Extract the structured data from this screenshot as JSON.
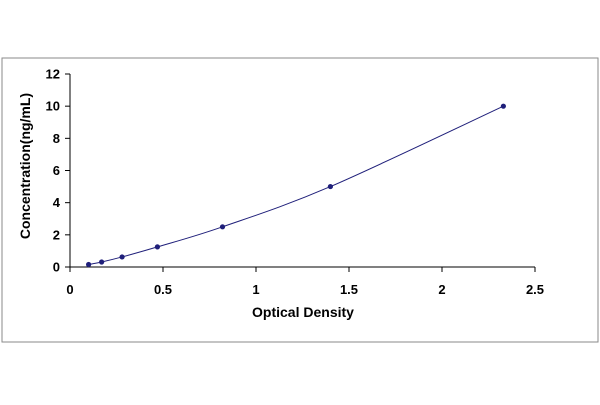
{
  "chart_data": {
    "type": "scatter",
    "title": "",
    "xlabel": "Optical Density",
    "ylabel": "Concentration(ng/mL)",
    "xlim": [
      0,
      2.5
    ],
    "ylim": [
      0,
      12
    ],
    "x_ticks": [
      0,
      0.5,
      1,
      1.5,
      2,
      2.5
    ],
    "x_tick_labels": [
      "0",
      "0.5",
      "1",
      "1.5",
      "2",
      "2.5"
    ],
    "y_ticks": [
      0,
      2,
      4,
      6,
      8,
      10,
      12
    ],
    "y_tick_labels": [
      "0",
      "2",
      "4",
      "6",
      "8",
      "10",
      "12"
    ],
    "grid": false,
    "legend": "none",
    "series": [
      {
        "x": [
          0.1,
          0.17,
          0.28,
          0.47,
          0.82,
          1.4,
          2.33
        ],
        "y": [
          0.156,
          0.312,
          0.625,
          1.25,
          2.5,
          5,
          10
        ],
        "marker_color": "#1f1f7a",
        "curve_color": "#1f1f7a",
        "fit": "smooth"
      }
    ]
  }
}
